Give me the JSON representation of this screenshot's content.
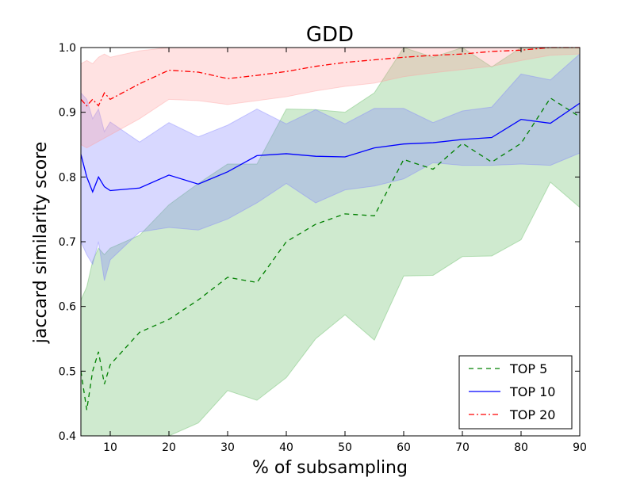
{
  "chart_data": {
    "type": "line",
    "title": "GDD",
    "xlabel": "% of subsampling",
    "ylabel": "jaccard similarity score",
    "xlim": [
      5,
      90
    ],
    "ylim": [
      0.4,
      1.0
    ],
    "x_ticks": [
      10,
      20,
      30,
      40,
      50,
      60,
      70,
      80,
      90
    ],
    "y_ticks": [
      0.4,
      0.5,
      0.6,
      0.7,
      0.8,
      0.9,
      1.0
    ],
    "x_tick_labels": [
      "10",
      "20",
      "30",
      "40",
      "50",
      "60",
      "70",
      "80",
      "90"
    ],
    "y_tick_labels": [
      "0.4",
      "0.5",
      "0.6",
      "0.7",
      "0.8",
      "0.9",
      "1.0"
    ],
    "grid": false,
    "legend": "bottom-right",
    "series": [
      {
        "name": "TOP 5",
        "color": "#008000",
        "fill_color": "#5fb85f",
        "line_style": "dashed",
        "x": [
          5,
          6,
          7,
          8,
          9,
          10,
          15,
          20,
          25,
          30,
          35,
          40,
          45,
          50,
          55,
          60,
          65,
          70,
          75,
          80,
          85,
          90
        ],
        "mean": [
          0.5,
          0.44,
          0.5,
          0.53,
          0.48,
          0.51,
          0.56,
          0.58,
          0.61,
          0.645,
          0.637,
          0.7,
          0.727,
          0.743,
          0.74,
          0.827,
          0.812,
          0.852,
          0.823,
          0.852,
          0.922,
          0.893
        ],
        "lower": [
          0.4,
          0.4,
          0.4,
          0.4,
          0.4,
          0.4,
          0.4,
          0.4,
          0.42,
          0.47,
          0.455,
          0.49,
          0.55,
          0.587,
          0.548,
          0.647,
          0.648,
          0.677,
          0.678,
          0.703,
          0.792,
          0.753
        ],
        "upper": [
          0.61,
          0.63,
          0.67,
          0.69,
          0.68,
          0.69,
          0.71,
          0.757,
          0.79,
          0.82,
          0.82,
          0.905,
          0.904,
          0.9,
          0.93,
          1.0,
          0.985,
          1.0,
          0.97,
          1.0,
          1.0,
          1.0
        ]
      },
      {
        "name": "TOP 10",
        "color": "#0000ff",
        "fill_color": "#7f7fff",
        "line_style": "solid",
        "x": [
          5,
          6,
          7,
          8,
          9,
          10,
          15,
          20,
          25,
          30,
          35,
          40,
          45,
          50,
          55,
          60,
          65,
          70,
          75,
          80,
          85,
          90
        ],
        "mean": [
          0.835,
          0.8,
          0.777,
          0.8,
          0.785,
          0.779,
          0.783,
          0.803,
          0.789,
          0.808,
          0.833,
          0.836,
          0.832,
          0.831,
          0.845,
          0.851,
          0.853,
          0.858,
          0.861,
          0.889,
          0.883,
          0.914
        ],
        "lower": [
          0.7,
          0.68,
          0.665,
          0.7,
          0.64,
          0.672,
          0.715,
          0.722,
          0.718,
          0.735,
          0.76,
          0.79,
          0.76,
          0.78,
          0.786,
          0.797,
          0.822,
          0.818,
          0.818,
          0.82,
          0.818,
          0.837
        ],
        "upper": [
          0.93,
          0.92,
          0.89,
          0.905,
          0.87,
          0.885,
          0.854,
          0.884,
          0.862,
          0.88,
          0.905,
          0.882,
          0.904,
          0.882,
          0.906,
          0.906,
          0.884,
          0.902,
          0.908,
          0.959,
          0.95,
          0.99
        ]
      },
      {
        "name": "TOP 20",
        "color": "#ff0000",
        "fill_color": "#ff9f9f",
        "line_style": "dashdot",
        "x": [
          5,
          6,
          7,
          8,
          9,
          10,
          15,
          20,
          25,
          30,
          35,
          40,
          45,
          50,
          55,
          60,
          65,
          70,
          75,
          80,
          85,
          90
        ],
        "mean": [
          0.92,
          0.91,
          0.92,
          0.91,
          0.93,
          0.92,
          0.944,
          0.965,
          0.962,
          0.952,
          0.957,
          0.963,
          0.971,
          0.977,
          0.981,
          0.985,
          0.988,
          0.99,
          0.994,
          0.996,
          1.0,
          1.0
        ],
        "lower": [
          0.85,
          0.845,
          0.85,
          0.855,
          0.86,
          0.865,
          0.89,
          0.92,
          0.918,
          0.912,
          0.918,
          0.924,
          0.933,
          0.94,
          0.945,
          0.955,
          0.961,
          0.966,
          0.971,
          0.98,
          0.988,
          0.99
        ],
        "upper": [
          0.975,
          0.98,
          0.975,
          0.985,
          0.99,
          0.985,
          0.995,
          1.0,
          1.0,
          1.0,
          1.0,
          1.0,
          1.0,
          1.0,
          1.0,
          1.0,
          1.0,
          1.0,
          1.0,
          1.0,
          1.0,
          1.0
        ]
      }
    ]
  }
}
